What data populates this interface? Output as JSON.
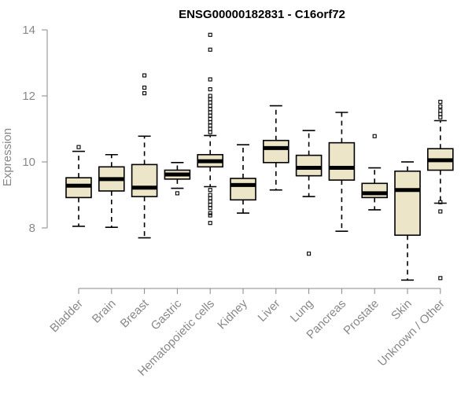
{
  "chart_data": {
    "type": "box",
    "title": "ENSG00000182831 - C16orf72",
    "ylabel": "Expression",
    "xlabel": "",
    "ylim": [
      6.2,
      14.1
    ],
    "yticks": [
      8,
      10,
      12,
      14
    ],
    "colors": {
      "box_fill": "#ede5c8",
      "axis": "#888888",
      "stroke": "#000000"
    },
    "categories": [
      "Bladder",
      "Brain",
      "Breast",
      "Gastric",
      "Hematopoietic cells",
      "Kidney",
      "Liver",
      "Lung",
      "Pancreas",
      "Prostate",
      "Skin",
      "Unknown / Other"
    ],
    "boxes": [
      {
        "min": 8.05,
        "q1": 8.92,
        "median": 9.28,
        "q3": 9.52,
        "max": 10.32,
        "outliers": [
          10.45
        ]
      },
      {
        "min": 8.02,
        "q1": 9.12,
        "median": 9.48,
        "q3": 9.85,
        "max": 10.22,
        "outliers": []
      },
      {
        "min": 7.7,
        "q1": 8.95,
        "median": 9.22,
        "q3": 9.92,
        "max": 10.78,
        "outliers": [
          12.08,
          12.25,
          12.62
        ]
      },
      {
        "min": 9.2,
        "q1": 9.48,
        "median": 9.62,
        "q3": 9.75,
        "max": 9.98,
        "outliers": [
          9.05
        ]
      },
      {
        "min": 9.25,
        "q1": 9.85,
        "median": 10.02,
        "q3": 10.22,
        "max": 10.8,
        "outliers": [
          10.9,
          11.0,
          11.1,
          11.2,
          11.3,
          11.4,
          11.5,
          11.6,
          11.7,
          11.8,
          11.9,
          12.0,
          12.2,
          12.5,
          13.4,
          13.85,
          9.15,
          9.0,
          8.9,
          8.8,
          8.7,
          8.6,
          8.45,
          8.38,
          8.15
        ]
      },
      {
        "min": 8.45,
        "q1": 8.85,
        "median": 9.3,
        "q3": 9.5,
        "max": 10.52,
        "outliers": []
      },
      {
        "min": 9.15,
        "q1": 9.98,
        "median": 10.42,
        "q3": 10.65,
        "max": 11.7,
        "outliers": []
      },
      {
        "min": 8.95,
        "q1": 9.58,
        "median": 9.82,
        "q3": 10.2,
        "max": 10.95,
        "outliers": [
          7.22
        ]
      },
      {
        "min": 7.9,
        "q1": 9.45,
        "median": 9.82,
        "q3": 10.58,
        "max": 11.5,
        "outliers": []
      },
      {
        "min": 8.55,
        "q1": 8.92,
        "median": 9.05,
        "q3": 9.35,
        "max": 9.82,
        "outliers": [
          10.78
        ]
      },
      {
        "min": 6.42,
        "q1": 7.78,
        "median": 9.15,
        "q3": 9.72,
        "max": 10.0,
        "outliers": []
      },
      {
        "min": 8.75,
        "q1": 9.75,
        "median": 10.05,
        "q3": 10.4,
        "max": 11.25,
        "outliers": [
          11.35,
          11.45,
          11.55,
          11.68,
          11.82,
          8.78,
          8.5,
          6.48
        ]
      }
    ]
  }
}
